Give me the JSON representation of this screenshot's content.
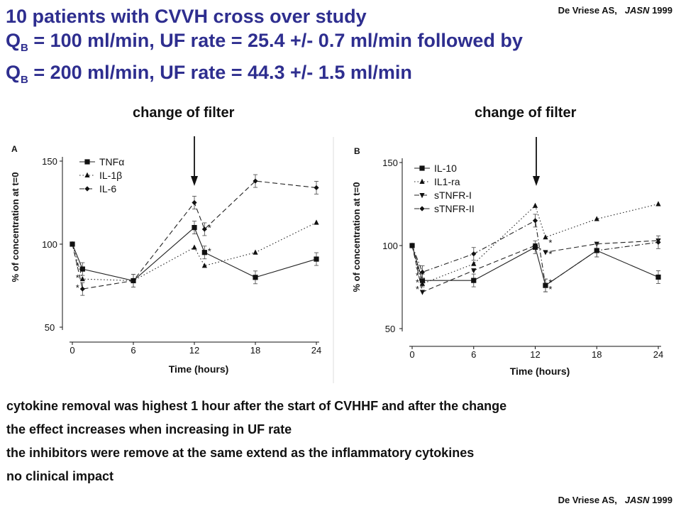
{
  "title": {
    "line1": "10 patients with CVVH cross over study",
    "line2_prefix": "Q",
    "line2_sub": "B",
    "line2_rest": " = 100 ml/min, UF rate = 25.4 +/- 0.7 ml/min followed by",
    "line3_prefix": "Q",
    "line3_sub": "B",
    "line3_rest": " = 200 ml/min, UF rate = 44.3 +/- 1.5 ml/min"
  },
  "citation": {
    "author": "De Vriese AS,",
    "journal": "JASN",
    "year": "1999"
  },
  "change_label": "change of filter",
  "bullets": [
    "cytokine removal was highest 1 hour after the start of CVHHF and after the change",
    "the effect increases when increasing in UF rate",
    "the inhibitors were remove at the same extend as the inflammatory cytokines",
    "no clinical impact"
  ],
  "chart_data": [
    {
      "type": "line",
      "panel": "A",
      "xlabel": "Time (hours)",
      "ylabel": "% of concentration at t=0",
      "x": [
        0,
        1,
        6,
        12,
        13,
        18,
        24
      ],
      "xticks": [
        0,
        6,
        12,
        18,
        24
      ],
      "yticks": [
        50,
        100,
        150
      ],
      "xlim": [
        0,
        24
      ],
      "ylim": [
        50,
        150
      ],
      "legend_position": "top-left",
      "arrow_at_x": 12,
      "series": [
        {
          "name": "TNFα",
          "marker": "square",
          "dash": "solid",
          "values": [
            100,
            85,
            78,
            110,
            95,
            80,
            91
          ]
        },
        {
          "name": "IL-1β",
          "marker": "triangle",
          "dash": "dotted",
          "values": [
            100,
            79,
            78,
            98,
            87,
            95,
            113
          ]
        },
        {
          "name": "IL-6",
          "marker": "diamond",
          "dash": "dashed",
          "values": [
            100,
            73,
            78,
            125,
            109,
            138,
            134
          ]
        }
      ],
      "asterisks": [
        {
          "x": 1,
          "y": 87
        },
        {
          "x": 1,
          "y": 80
        },
        {
          "x": 1,
          "y": 74
        },
        {
          "x": 13,
          "y": 110
        },
        {
          "x": 13,
          "y": 96
        }
      ]
    },
    {
      "type": "line",
      "panel": "B",
      "xlabel": "Time (hours)",
      "ylabel": "% of concentration at t=0",
      "x": [
        0,
        1,
        6,
        12,
        13,
        18,
        24
      ],
      "xticks": [
        0,
        6,
        12,
        18,
        24
      ],
      "yticks": [
        50,
        100,
        150
      ],
      "xlim": [
        0,
        24
      ],
      "ylim": [
        50,
        150
      ],
      "legend_position": "top-left",
      "arrow_at_x": 12,
      "series": [
        {
          "name": "IL-10",
          "marker": "square",
          "dash": "solid",
          "values": [
            100,
            79,
            79,
            99,
            76,
            97,
            81
          ]
        },
        {
          "name": "IL1-ra",
          "marker": "triangle",
          "dash": "dotted",
          "values": [
            100,
            77,
            89,
            124,
            105,
            116,
            125
          ]
        },
        {
          "name": "sTNFR-I",
          "marker": "triangle-down",
          "dash": "dashed",
          "values": [
            100,
            72,
            85,
            100,
            96,
            101,
            103
          ]
        },
        {
          "name": "sTNFR-II",
          "marker": "diamond",
          "dash": "dashdot",
          "values": [
            100,
            84,
            95,
            115,
            76,
            97,
            102
          ]
        }
      ],
      "asterisks": [
        {
          "x": 1,
          "y": 86
        },
        {
          "x": 1,
          "y": 82
        },
        {
          "x": 1,
          "y": 78
        },
        {
          "x": 1,
          "y": 74
        },
        {
          "x": 13,
          "y": 102
        },
        {
          "x": 13,
          "y": 95
        },
        {
          "x": 13,
          "y": 78
        },
        {
          "x": 13,
          "y": 74
        }
      ]
    }
  ]
}
